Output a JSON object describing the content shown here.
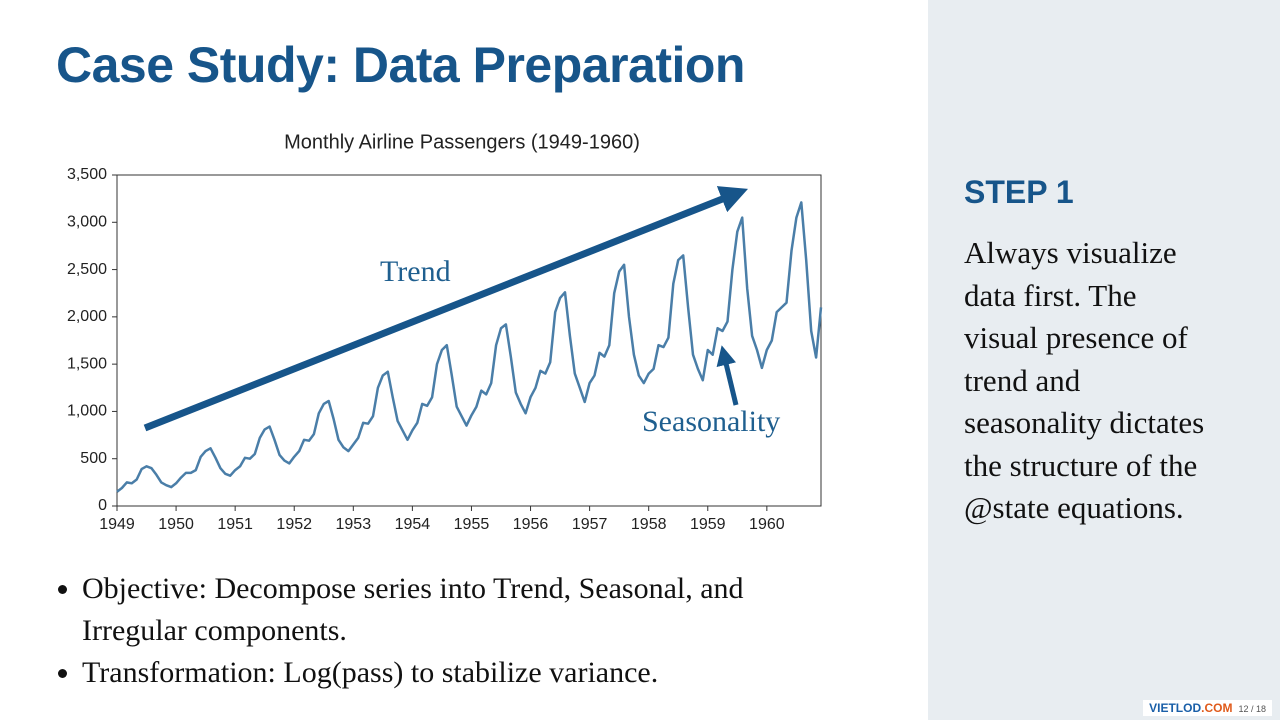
{
  "title": "Case Study: Data Preparation",
  "bullets": [
    "Objective: Decompose series into Trend, Seasonal, and Irregular components.",
    "Transformation: Log(pass) to stabilize variance."
  ],
  "side": {
    "heading": "STEP 1",
    "lines": [
      "Always visualize",
      "data first. The",
      "visual presence of",
      "trend and",
      "seasonality dictates",
      "the structure of the",
      "@state equations."
    ]
  },
  "footer": {
    "brand": "VIETLOD",
    "brand_suffix": ".COM",
    "page": "12 / 18"
  },
  "chart_data": {
    "type": "line",
    "title": "Monthly Airline Passengers (1949-1960)",
    "color": "#4a7ea8",
    "annotations": [
      "Trend",
      "Seasonality"
    ],
    "categories": [
      "1949",
      null,
      null,
      null,
      null,
      null,
      null,
      null,
      null,
      null,
      null,
      null,
      "1950",
      null,
      null,
      null,
      null,
      null,
      null,
      null,
      null,
      null,
      null,
      null,
      "1951",
      null,
      null,
      null,
      null,
      null,
      null,
      null,
      null,
      null,
      null,
      null,
      "1952",
      null,
      null,
      null,
      null,
      null,
      null,
      null,
      null,
      null,
      null,
      null,
      "1953",
      null,
      null,
      null,
      null,
      null,
      null,
      null,
      null,
      null,
      null,
      null,
      "1954",
      null,
      null,
      null,
      null,
      null,
      null,
      null,
      null,
      null,
      null,
      null,
      "1955",
      null,
      null,
      null,
      null,
      null,
      null,
      null,
      null,
      null,
      null,
      null,
      "1956",
      null,
      null,
      null,
      null,
      null,
      null,
      null,
      null,
      null,
      null,
      null,
      "1957",
      null,
      null,
      null,
      null,
      null,
      null,
      null,
      null,
      null,
      null,
      null,
      "1958",
      null,
      null,
      null,
      null,
      null,
      null,
      null,
      null,
      null,
      null,
      null,
      "1959",
      null,
      null,
      null,
      null,
      null,
      null,
      null,
      null,
      null,
      null,
      null,
      "1960",
      null,
      null,
      null,
      null,
      null,
      null,
      null,
      null,
      null,
      null,
      null
    ],
    "values": [
      150,
      190,
      250,
      240,
      280,
      390,
      420,
      400,
      330,
      250,
      220,
      200,
      240,
      300,
      350,
      350,
      380,
      520,
      580,
      610,
      510,
      400,
      340,
      320,
      380,
      420,
      510,
      500,
      550,
      720,
      810,
      840,
      700,
      540,
      480,
      450,
      520,
      580,
      700,
      690,
      760,
      980,
      1080,
      1110,
      920,
      700,
      620,
      580,
      650,
      720,
      880,
      870,
      950,
      1250,
      1380,
      1420,
      1150,
      900,
      800,
      700,
      800,
      880,
      1080,
      1060,
      1150,
      1500,
      1650,
      1700,
      1380,
      1050,
      950,
      850,
      960,
      1050,
      1220,
      1180,
      1300,
      1700,
      1880,
      1920,
      1580,
      1200,
      1080,
      980,
      1150,
      1250,
      1430,
      1400,
      1520,
      2050,
      2200,
      2260,
      1800,
      1400,
      1250,
      1100,
      1300,
      1380,
      1620,
      1580,
      1700,
      2250,
      2480,
      2550,
      2000,
      1600,
      1380,
      1300,
      1400,
      1450,
      1700,
      1680,
      1780,
      2350,
      2600,
      2650,
      2100,
      1600,
      1450,
      1330,
      1650,
      1600,
      1880,
      1850,
      1950,
      2500,
      2900,
      3050,
      2300,
      1800,
      1650,
      1460,
      1650,
      1750,
      2050,
      2100,
      2150,
      2700,
      3050,
      3210,
      2600,
      1850,
      1570,
      2100
    ],
    "ylim": [
      0,
      3500
    ],
    "yticks": [
      0,
      500,
      {
        "value": 1000,
        "label": "1,000"
      },
      {
        "value": 1500,
        "label": "1,500"
      },
      {
        "value": 2000,
        "label": "2,000"
      },
      {
        "value": 2500,
        "label": "2,500"
      },
      {
        "value": 3000,
        "label": "3,000"
      },
      {
        "value": 3500,
        "label": "3,500"
      }
    ]
  }
}
